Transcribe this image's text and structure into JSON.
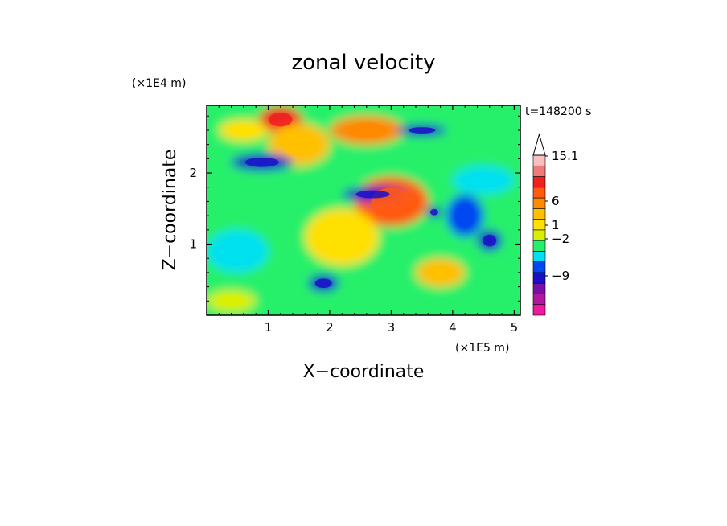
{
  "chart_data": {
    "type": "heatmap",
    "title": "zonal velocity",
    "xlabel": "X−coordinate",
    "ylabel": "Z−coordinate",
    "x_unit": "(×1E5 m)",
    "y_unit": "(×1E4 m)",
    "time_label": "t=148200 s",
    "xlim": [
      0,
      5.1
    ],
    "ylim": [
      0,
      2.95
    ],
    "x_ticks": [
      "1",
      "2",
      "3",
      "4",
      "5"
    ],
    "x_tick_values": [
      1,
      2,
      3,
      4,
      5
    ],
    "y_ticks": [
      "1",
      "2"
    ],
    "y_tick_values": [
      1,
      2
    ],
    "colorbar": {
      "labels": [
        "15.1",
        "6",
        "1",
        "−2",
        "−9"
      ],
      "label_values": [
        15.1,
        6,
        1,
        -2,
        -9
      ],
      "colors": [
        "#f0189e",
        "#b0189e",
        "#7a0fa8",
        "#1a10c8",
        "#0048f0",
        "#00e0f0",
        "#26f06a",
        "#d8f000",
        "#ffe000",
        "#ffc000",
        "#ff8a00",
        "#ff5a10",
        "#f02020",
        "#f07a7a",
        "#f8c0c0"
      ],
      "extend": "max"
    },
    "features": [
      {
        "x": 1.2,
        "y": 2.75,
        "level": 12,
        "rx": 0.35,
        "ry": 0.18
      },
      {
        "x": 3.0,
        "y": 1.6,
        "level": 11,
        "rx": 0.6,
        "ry": 0.35
      },
      {
        "x": 1.5,
        "y": 2.4,
        "level": 9,
        "rx": 0.5,
        "ry": 0.3
      },
      {
        "x": 2.6,
        "y": 2.6,
        "level": 10,
        "rx": 0.6,
        "ry": 0.2
      },
      {
        "x": 4.2,
        "y": 1.4,
        "level": 4,
        "rx": 0.3,
        "ry": 0.3
      },
      {
        "x": 4.6,
        "y": 1.05,
        "level": 3,
        "rx": 0.2,
        "ry": 0.15
      },
      {
        "x": 0.9,
        "y": 2.15,
        "level": 3,
        "rx": 0.5,
        "ry": 0.12
      },
      {
        "x": 2.7,
        "y": 1.7,
        "level": 3,
        "rx": 0.5,
        "ry": 0.1
      },
      {
        "x": 3.5,
        "y": 2.6,
        "level": 3,
        "rx": 0.4,
        "ry": 0.08
      },
      {
        "x": 3.7,
        "y": 1.45,
        "level": 3,
        "rx": 0.12,
        "ry": 0.08
      },
      {
        "x": 1.9,
        "y": 0.45,
        "level": 3,
        "rx": 0.25,
        "ry": 0.12
      },
      {
        "x": 0.5,
        "y": 0.9,
        "level": 5,
        "rx": 0.5,
        "ry": 0.3
      },
      {
        "x": 4.5,
        "y": 1.9,
        "level": 5,
        "rx": 0.5,
        "ry": 0.2
      },
      {
        "x": 0.4,
        "y": 0.2,
        "level": 7,
        "rx": 0.4,
        "ry": 0.15
      },
      {
        "x": 2.2,
        "y": 1.1,
        "level": 8,
        "rx": 0.6,
        "ry": 0.4
      },
      {
        "x": 3.8,
        "y": 0.6,
        "level": 9,
        "rx": 0.4,
        "ry": 0.2
      },
      {
        "x": 0.6,
        "y": 2.6,
        "level": 8,
        "rx": 0.4,
        "ry": 0.15
      }
    ]
  }
}
